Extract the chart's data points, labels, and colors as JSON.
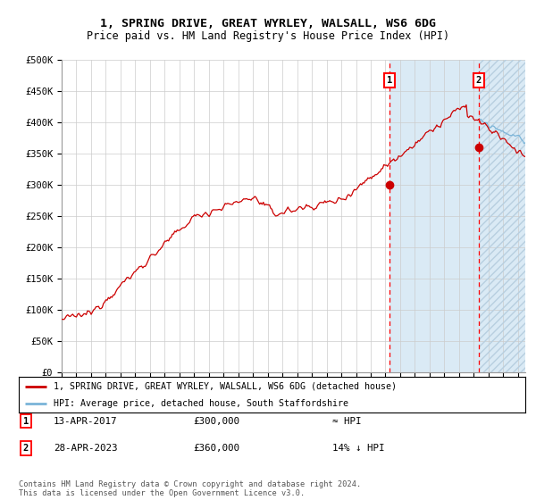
{
  "title_line1": "1, SPRING DRIVE, GREAT WYRLEY, WALSALL, WS6 6DG",
  "title_line2": "Price paid vs. HM Land Registry's House Price Index (HPI)",
  "ylabel_ticks": [
    "£0",
    "£50K",
    "£100K",
    "£150K",
    "£200K",
    "£250K",
    "£300K",
    "£350K",
    "£400K",
    "£450K",
    "£500K"
  ],
  "ytick_values": [
    0,
    50000,
    100000,
    150000,
    200000,
    250000,
    300000,
    350000,
    400000,
    450000,
    500000
  ],
  "ylim": [
    0,
    500000
  ],
  "xlim_start": 1995.0,
  "xlim_end": 2026.5,
  "xtick_years": [
    1995,
    1996,
    1997,
    1998,
    1999,
    2000,
    2001,
    2002,
    2003,
    2004,
    2005,
    2006,
    2007,
    2008,
    2009,
    2010,
    2011,
    2012,
    2013,
    2014,
    2015,
    2016,
    2017,
    2018,
    2019,
    2020,
    2021,
    2022,
    2023,
    2024,
    2025,
    2026
  ],
  "purchase1_date": 2017.28,
  "purchase1_price": 300000,
  "purchase2_date": 2023.32,
  "purchase2_price": 360000,
  "legend_line1": "1, SPRING DRIVE, GREAT WYRLEY, WALSALL, WS6 6DG (detached house)",
  "legend_line2": "HPI: Average price, detached house, South Staffordshire",
  "footer_text": "Contains HM Land Registry data © Crown copyright and database right 2024.\nThis data is licensed under the Open Government Licence v3.0.",
  "line_color": "#cc0000",
  "hpi_line_color": "#7ab4d8",
  "shading_color": "#daeaf5",
  "hatch_color": "#b8cfe0",
  "grid_color": "#cccccc",
  "box_label1_date": "13-APR-2017",
  "box_label1_price": "£300,000",
  "box_label1_rel": "≈ HPI",
  "box_label2_date": "28-APR-2023",
  "box_label2_price": "£360,000",
  "box_label2_rel": "14% ↓ HPI"
}
